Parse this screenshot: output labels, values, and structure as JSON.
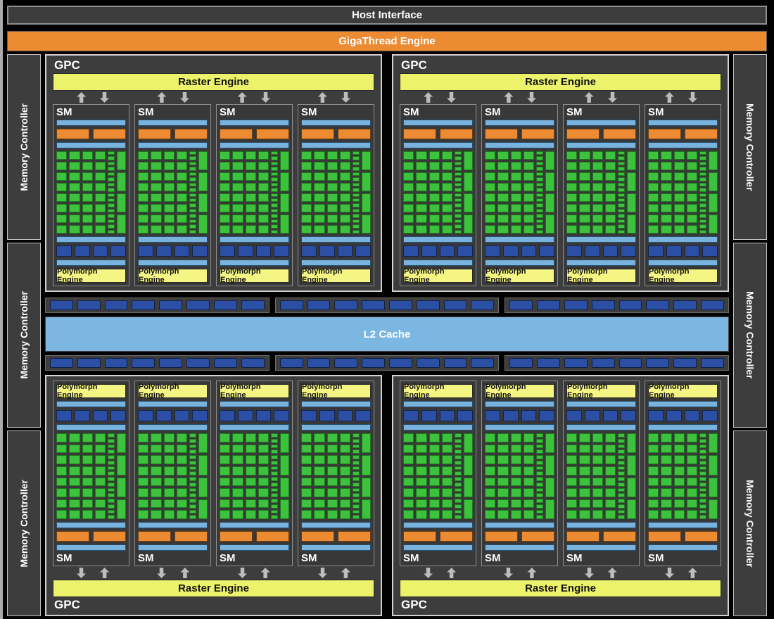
{
  "labels": {
    "host_interface": "Host Interface",
    "gigathread_engine": "GigaThread Engine",
    "gpc": "GPC",
    "raster_engine": "Raster Engine",
    "sm": "SM",
    "polymorph_engine": "Polymorph Engine",
    "l2_cache": "L2 Cache",
    "memory_controller": "Memory Controller"
  },
  "structure": {
    "gpc_rows": 2,
    "gpcs_per_row": 2,
    "sms_per_gpc": 4,
    "core_grid": {
      "rows": 8,
      "cols": 4
    },
    "small_units_per_sm": 16,
    "tall_units_per_sm": 4,
    "scheduler_bars_per_sm": 2,
    "segments_per_sm": 4,
    "strip_groups": 3,
    "segments_per_strip_group": 8,
    "memory_controllers_per_side": 3
  },
  "colors": {
    "background": "#000000",
    "block_gray": "#3d3d3d",
    "border_light": "#d2d2d2",
    "orange": "#ed8b33",
    "raster_yellow": "#edf26b",
    "polymorph_yellow": "#f5f584",
    "light_blue": "#7ab2de",
    "l2_blue": "#7cb7e2",
    "dark_blue": "#2b4fa4",
    "core_green": "#3cc23c",
    "arrow_gray": "#bdbdbd"
  }
}
